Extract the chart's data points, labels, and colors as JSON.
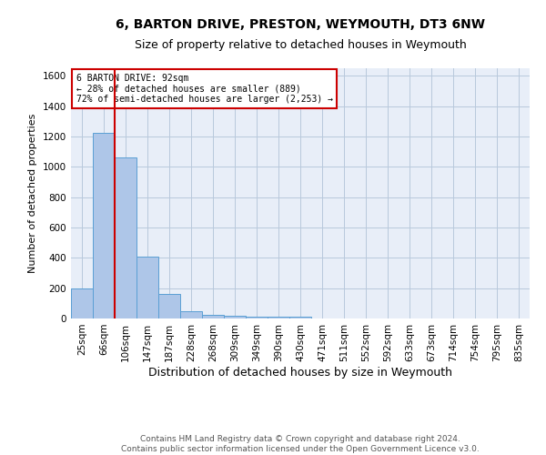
{
  "title1": "6, BARTON DRIVE, PRESTON, WEYMOUTH, DT3 6NW",
  "title2": "Size of property relative to detached houses in Weymouth",
  "xlabel": "Distribution of detached houses by size in Weymouth",
  "ylabel": "Number of detached properties",
  "categories": [
    "25sqm",
    "66sqm",
    "106sqm",
    "147sqm",
    "187sqm",
    "228sqm",
    "268sqm",
    "309sqm",
    "349sqm",
    "390sqm",
    "430sqm",
    "471sqm",
    "511sqm",
    "552sqm",
    "592sqm",
    "633sqm",
    "673sqm",
    "714sqm",
    "754sqm",
    "795sqm",
    "835sqm"
  ],
  "values": [
    200,
    1225,
    1065,
    410,
    165,
    50,
    25,
    20,
    10,
    10,
    10,
    0,
    0,
    0,
    0,
    0,
    0,
    0,
    0,
    0,
    0
  ],
  "bar_color": "#aec6e8",
  "bar_edge_color": "#5a9fd4",
  "vline_x_index": 1.5,
  "vline_color": "#cc0000",
  "annotation_text": "6 BARTON DRIVE: 92sqm\n← 28% of detached houses are smaller (889)\n72% of semi-detached houses are larger (2,253) →",
  "annotation_box_color": "#ffffff",
  "annotation_box_edge": "#cc0000",
  "ylim": [
    0,
    1650
  ],
  "yticks": [
    0,
    200,
    400,
    600,
    800,
    1000,
    1200,
    1400,
    1600
  ],
  "plot_bg_color": "#e8eef8",
  "footer1": "Contains HM Land Registry data © Crown copyright and database right 2024.",
  "footer2": "Contains public sector information licensed under the Open Government Licence v3.0.",
  "title1_fontsize": 10,
  "title2_fontsize": 9,
  "xlabel_fontsize": 9,
  "ylabel_fontsize": 8,
  "tick_fontsize": 7.5,
  "footer_fontsize": 6.5
}
